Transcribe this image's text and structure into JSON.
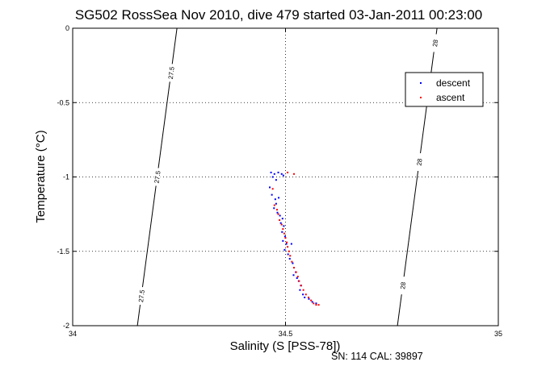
{
  "chart_data": {
    "type": "scatter",
    "title": "SG502 RossSea Nov 2010, dive 479 started 03-Jan-2011 00:23:00",
    "xlabel": "Salinity (S [PSS-78])",
    "ylabel": "Temperature (°C)",
    "xlim": [
      34,
      35
    ],
    "ylim": [
      -2,
      0
    ],
    "xticks": [
      "34",
      "34.5",
      "35"
    ],
    "yticks": [
      "-2",
      "-1.5",
      "-1",
      "-0.5",
      "0"
    ],
    "grid": true,
    "legend_position": "top-right",
    "footer": "SN: 114  CAL: 39897",
    "contours": [
      {
        "label": "27.5",
        "line": [
          [
            34.152,
            -2.0
          ],
          [
            34.245,
            0.0
          ]
        ],
        "labels_at": [
          -0.3,
          -1.0,
          -1.8
        ]
      },
      {
        "label": "28",
        "line": [
          [
            34.763,
            -2.0
          ],
          [
            34.856,
            0.0
          ]
        ],
        "labels_at": [
          -0.1,
          -0.9,
          -1.73
        ]
      }
    ],
    "series": [
      {
        "name": "descent",
        "color": "#0000ff",
        "points": [
          [
            34.466,
            -0.97
          ],
          [
            34.474,
            -0.98
          ],
          [
            34.483,
            -0.97
          ],
          [
            34.491,
            -0.98
          ],
          [
            34.47,
            -1.0
          ],
          [
            34.478,
            -1.02
          ],
          [
            34.495,
            -0.99
          ],
          [
            34.463,
            -1.07
          ],
          [
            34.468,
            -1.12
          ],
          [
            34.476,
            -1.15
          ],
          [
            34.484,
            -1.14
          ],
          [
            34.478,
            -1.18
          ],
          [
            34.473,
            -1.21
          ],
          [
            34.481,
            -1.24
          ],
          [
            34.487,
            -1.26
          ],
          [
            34.493,
            -1.28
          ],
          [
            34.489,
            -1.31
          ],
          [
            34.496,
            -1.33
          ],
          [
            34.492,
            -1.37
          ],
          [
            34.499,
            -1.4
          ],
          [
            34.494,
            -1.43
          ],
          [
            34.502,
            -1.45
          ],
          [
            34.514,
            -1.45
          ],
          [
            34.498,
            -1.49
          ],
          [
            34.506,
            -1.52
          ],
          [
            34.51,
            -1.55
          ],
          [
            34.517,
            -1.58
          ],
          [
            34.52,
            -1.61
          ],
          [
            34.524,
            -1.64
          ],
          [
            34.519,
            -1.66
          ],
          [
            34.527,
            -1.68
          ],
          [
            34.531,
            -1.7
          ],
          [
            34.536,
            -1.73
          ],
          [
            34.534,
            -1.76
          ],
          [
            34.541,
            -1.79
          ],
          [
            34.545,
            -1.81
          ],
          [
            34.555,
            -1.82
          ],
          [
            34.563,
            -1.84
          ],
          [
            34.572,
            -1.85
          ]
        ]
      },
      {
        "name": "ascent",
        "color": "#ff0000",
        "points": [
          [
            34.505,
            -0.97
          ],
          [
            34.52,
            -0.98
          ],
          [
            34.47,
            -1.08
          ],
          [
            34.474,
            -1.19
          ],
          [
            34.48,
            -1.22
          ],
          [
            34.483,
            -1.25
          ],
          [
            34.486,
            -1.29
          ],
          [
            34.491,
            -1.32
          ],
          [
            34.494,
            -1.35
          ],
          [
            34.497,
            -1.38
          ],
          [
            34.5,
            -1.41
          ],
          [
            34.503,
            -1.44
          ],
          [
            34.505,
            -1.47
          ],
          [
            34.508,
            -1.5
          ],
          [
            34.511,
            -1.53
          ],
          [
            34.515,
            -1.57
          ],
          [
            34.52,
            -1.61
          ],
          [
            34.525,
            -1.64
          ],
          [
            34.529,
            -1.67
          ],
          [
            34.532,
            -1.7
          ],
          [
            34.537,
            -1.73
          ],
          [
            34.542,
            -1.76
          ],
          [
            34.548,
            -1.79
          ],
          [
            34.554,
            -1.81
          ],
          [
            34.56,
            -1.83
          ],
          [
            34.566,
            -1.85
          ],
          [
            34.572,
            -1.86
          ],
          [
            34.578,
            -1.86
          ]
        ]
      }
    ]
  }
}
